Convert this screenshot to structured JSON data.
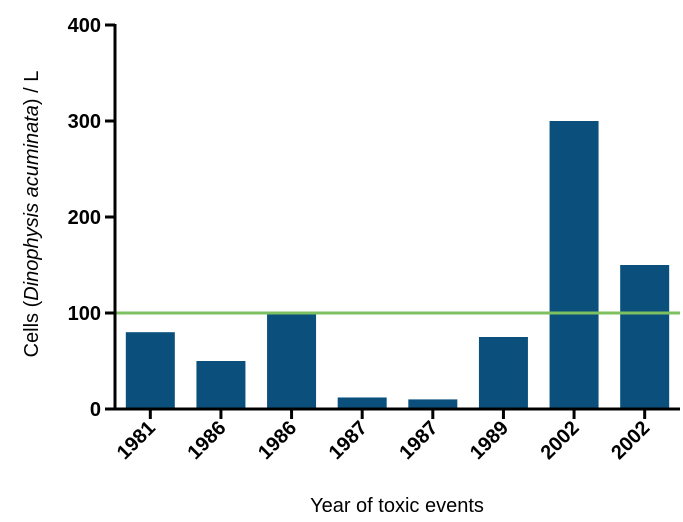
{
  "chart_data": {
    "type": "bar",
    "categories": [
      "1981",
      "1986",
      "1986",
      "1987",
      "1987",
      "1989",
      "2002",
      "2002"
    ],
    "values": [
      80,
      50,
      100,
      12,
      10,
      75,
      300,
      150
    ],
    "title": "",
    "xlabel": "Year of toxic events",
    "ylabel": {
      "prefix": "Cells (",
      "italic": "Dinophysis acuminata",
      "suffix": ") / L"
    },
    "ylim": [
      0,
      400
    ],
    "yticks": [
      "0",
      "100",
      "200",
      "300",
      "400"
    ],
    "reference_line": {
      "value": 100,
      "color": "#7cc061"
    },
    "bar_color": "#0b4f7d",
    "grid": false,
    "legend": "none"
  }
}
